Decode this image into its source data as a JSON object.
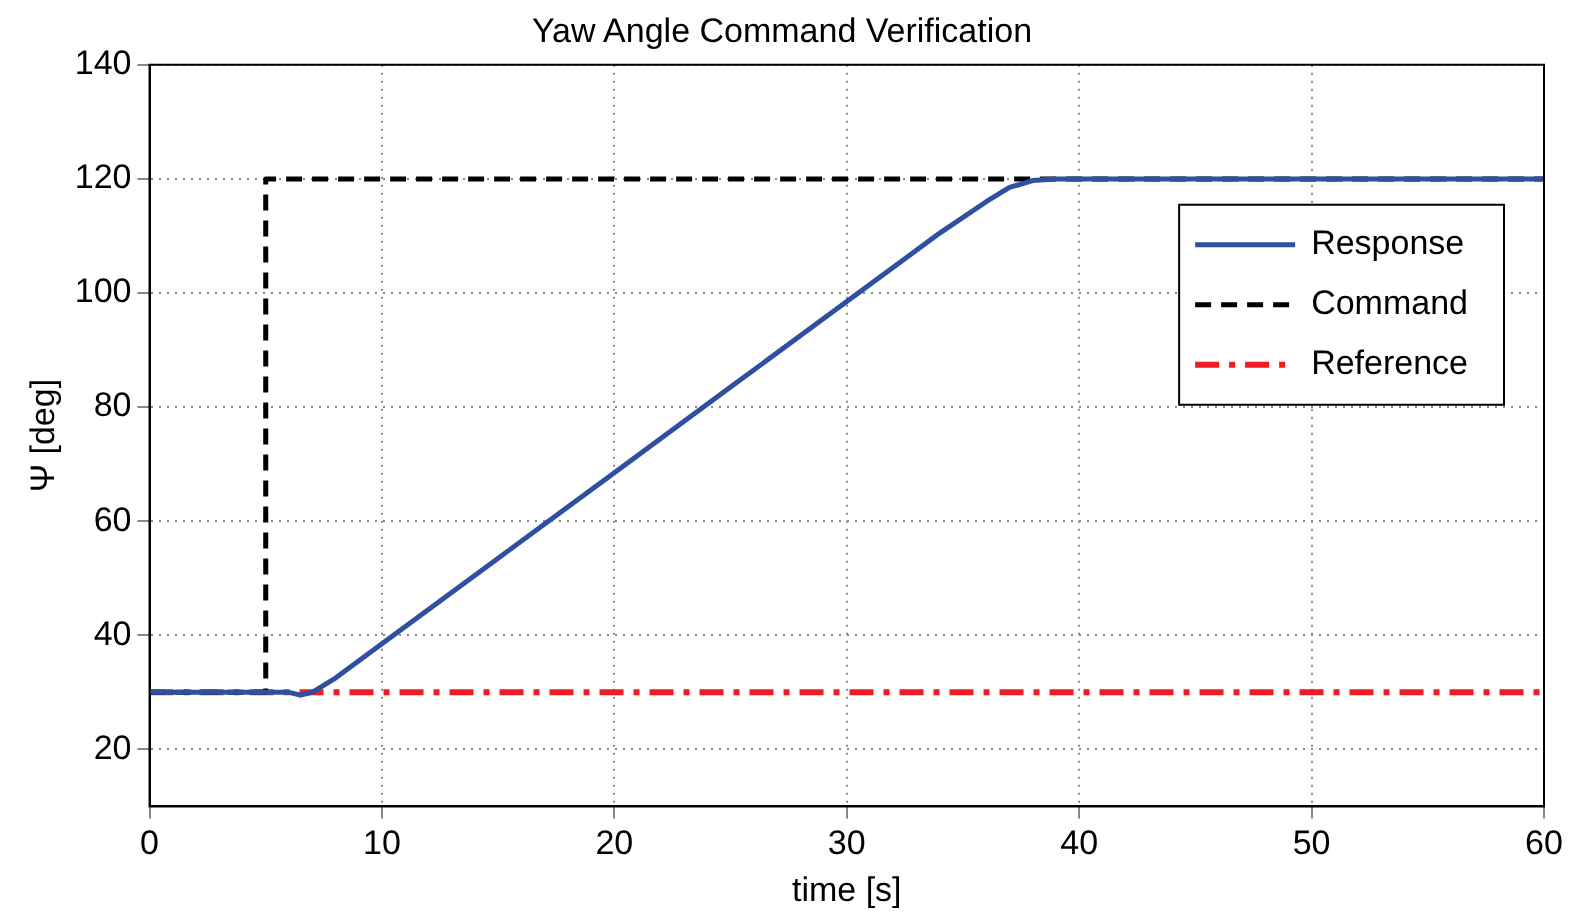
{
  "chart_data": {
    "type": "line",
    "title": "Yaw Angle Command Verification",
    "xlabel": "time [s]",
    "ylabel": "Ψ [deg]",
    "xlim": [
      0,
      60
    ],
    "xticks": [
      0,
      10,
      20,
      30,
      40,
      50,
      60
    ],
    "ylim": [
      10,
      140
    ],
    "yticks": [
      20,
      40,
      60,
      80,
      100,
      120,
      140
    ],
    "grid": true,
    "legend": "top right",
    "marker": "none",
    "series": [
      {
        "name": "Response",
        "color": "#2f4fa0",
        "line_style": "solid",
        "x": [
          0,
          6,
          6.5,
          7,
          8,
          10,
          15,
          20,
          25,
          30,
          34,
          36,
          37,
          38,
          39,
          60
        ],
        "values": [
          30,
          30,
          29.5,
          30,
          32.5,
          38.5,
          53.5,
          68.5,
          83.5,
          98.5,
          110.5,
          116,
          118.5,
          119.7,
          120,
          120
        ]
      },
      {
        "name": "Command",
        "color": "#000000",
        "line_style": "dashed",
        "x": [
          0,
          5,
          5,
          60
        ],
        "values": [
          30,
          30,
          120,
          120
        ]
      },
      {
        "name": "Reference",
        "color": "#ee1c24",
        "line_style": "dashdot",
        "x": [
          0,
          60
        ],
        "values": [
          30,
          30
        ]
      }
    ]
  }
}
